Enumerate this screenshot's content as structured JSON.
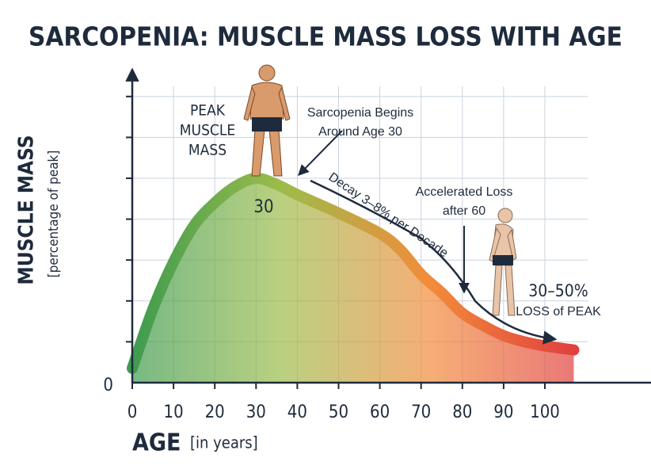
{
  "chart_data": {
    "type": "area",
    "title": "SARCOPENIA: MUSCLE MASS LOSS WITH AGE",
    "x_label": "AGE",
    "x_label_note": "[in years]",
    "y_label": "MUSCLE MASS",
    "y_label_note": "[percentage of peak]",
    "x": [
      0,
      5,
      10,
      15,
      20,
      25,
      30,
      35,
      40,
      50,
      60,
      65,
      70,
      75,
      80,
      85,
      90,
      95,
      100,
      107
    ],
    "values": [
      7,
      36,
      59,
      77,
      88,
      96,
      100,
      97,
      92,
      83,
      73,
      65,
      53,
      44,
      34,
      28,
      23,
      20,
      18,
      16
    ],
    "colors": [
      "#3e9b4f",
      "#9cbc4a",
      "#f28c3b",
      "#e03e3e"
    ],
    "xlim": [
      0,
      120
    ],
    "xticks": [
      0,
      10,
      20,
      30,
      40,
      50,
      60,
      70,
      80,
      90,
      100
    ],
    "ylim": [
      0,
      145
    ],
    "yticks": [
      0
    ],
    "ygrid": [
      20,
      40,
      60,
      80,
      100,
      120,
      140
    ],
    "grid": true,
    "annotations": {
      "peak": [
        "PEAK",
        "MUSCLE",
        "MASS"
      ],
      "peak_age": "30",
      "onset": [
        "Sarcopenia Begins",
        "Around Age 30"
      ],
      "decay": "Decay 3–8% per Decade",
      "accelerated": [
        "Accelerated Loss",
        "after 60"
      ],
      "loss": [
        "30–50%",
        "LOSS of PEAK"
      ]
    }
  }
}
